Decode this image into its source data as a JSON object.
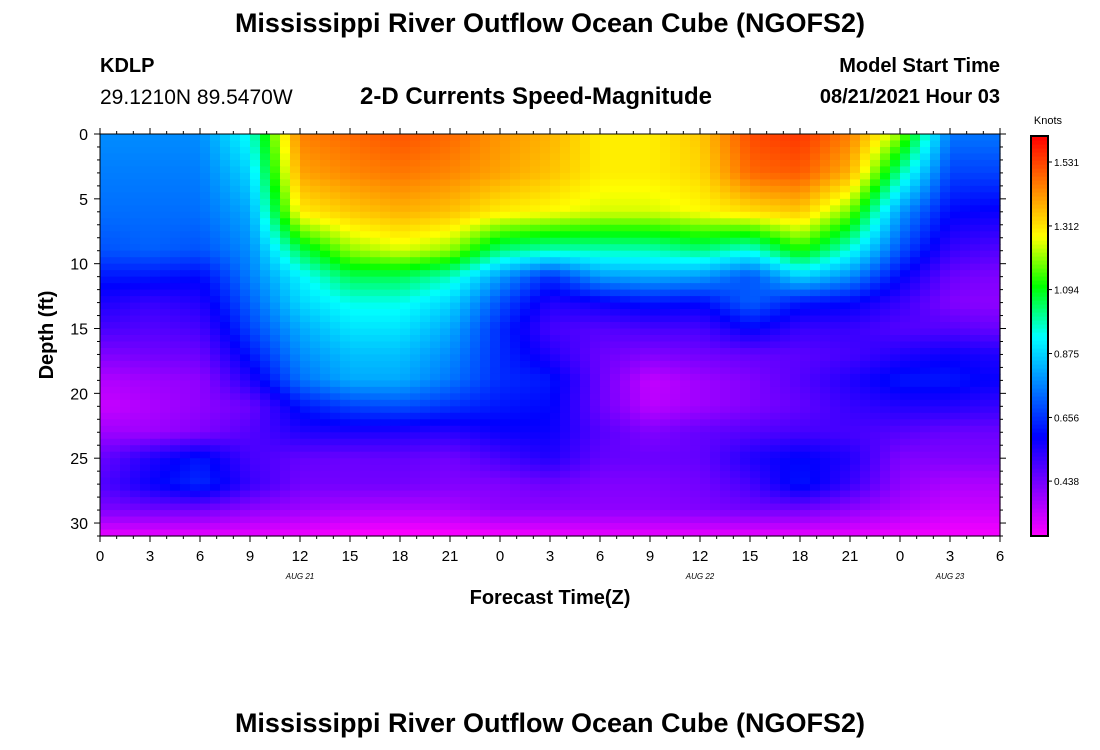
{
  "header": {
    "title": "Mississippi River Outflow Ocean Cube (NGOFS2)",
    "station_id": "KDLP",
    "station_coords": "29.1210N  89.5470W",
    "subtitle": "2-D Currents Speed-Magnitude",
    "model_start_label": "Model Start Time",
    "model_start_value": "08/21/2021 Hour 03"
  },
  "footer": {
    "title": "Mississippi River Outflow Ocean Cube (NGOFS2)"
  },
  "chart_data": {
    "type": "heatmap",
    "xlabel": "Forecast Time(Z)",
    "ylabel": "Depth (ft)",
    "colorbar_label": "Knots",
    "x_ticks": [
      "0",
      "3",
      "6",
      "9",
      "12",
      "15",
      "18",
      "21",
      "0",
      "3",
      "6",
      "9",
      "12",
      "15",
      "18",
      "21",
      "0",
      "3",
      "6"
    ],
    "date_labels": [
      {
        "label": "AUG  21",
        "hour": 12
      },
      {
        "label": "AUG  22",
        "hour": 36
      },
      {
        "label": "AUG  23",
        "hour": 51
      }
    ],
    "y_ticks": [
      0,
      5,
      10,
      15,
      20,
      25,
      30
    ],
    "xlim": [
      0,
      54
    ],
    "ylim": [
      0,
      31
    ],
    "y_inverted": true,
    "colorbar_ticks": [
      1.531,
      1.312,
      1.094,
      0.875,
      0.656,
      0.438
    ],
    "colorbar_range": [
      0.25,
      1.62
    ],
    "colors": {
      "magenta": "#ff00ff",
      "violet": "#8000ff",
      "blue": "#0000ff",
      "light-blue": "#0080ff",
      "cyan": "#00ffff",
      "green": "#00ff00",
      "yellow": "#ffff00",
      "orange": "#ff8000",
      "red": "#ff0000"
    },
    "depths": [
      0,
      3,
      6,
      9,
      11,
      13,
      15,
      17,
      19,
      21,
      23,
      25,
      27,
      29,
      31
    ],
    "hours": [
      0,
      3,
      6,
      9,
      12,
      15,
      18,
      21,
      24,
      27,
      30,
      33,
      36,
      39,
      42,
      45,
      48,
      51,
      54
    ],
    "values": [
      [
        0.78,
        0.78,
        0.78,
        0.95,
        1.45,
        1.48,
        1.51,
        1.48,
        1.42,
        1.38,
        1.3,
        1.3,
        1.35,
        1.52,
        1.55,
        1.45,
        1.2,
        0.75,
        0.75
      ],
      [
        0.76,
        0.76,
        0.76,
        0.88,
        1.4,
        1.44,
        1.46,
        1.44,
        1.4,
        1.36,
        1.3,
        1.3,
        1.33,
        1.48,
        1.5,
        1.38,
        1.0,
        0.68,
        0.68
      ],
      [
        0.74,
        0.74,
        0.74,
        0.82,
        1.3,
        1.35,
        1.38,
        1.36,
        1.3,
        1.28,
        1.25,
        1.25,
        1.28,
        1.32,
        1.35,
        1.18,
        0.8,
        0.6,
        0.58
      ],
      [
        0.7,
        0.72,
        0.7,
        0.78,
        1.05,
        1.2,
        1.25,
        1.2,
        1.02,
        0.98,
        0.98,
        0.98,
        1.02,
        0.95,
        1.12,
        0.95,
        0.7,
        0.52,
        0.48
      ],
      [
        0.62,
        0.62,
        0.6,
        0.76,
        0.92,
        1.05,
        1.05,
        0.98,
        0.8,
        0.65,
        0.8,
        0.82,
        0.8,
        0.7,
        0.88,
        0.78,
        0.6,
        0.45,
        0.42
      ],
      [
        0.56,
        0.52,
        0.55,
        0.72,
        0.88,
        0.95,
        0.95,
        0.88,
        0.7,
        0.55,
        0.58,
        0.62,
        0.6,
        0.72,
        0.62,
        0.6,
        0.52,
        0.42,
        0.4
      ],
      [
        0.5,
        0.48,
        0.5,
        0.68,
        0.82,
        0.9,
        0.9,
        0.82,
        0.65,
        0.5,
        0.48,
        0.5,
        0.5,
        0.6,
        0.52,
        0.52,
        0.48,
        0.48,
        0.45
      ],
      [
        0.42,
        0.44,
        0.45,
        0.62,
        0.78,
        0.85,
        0.85,
        0.78,
        0.65,
        0.55,
        0.45,
        0.42,
        0.44,
        0.46,
        0.47,
        0.5,
        0.55,
        0.58,
        0.55
      ],
      [
        0.35,
        0.38,
        0.4,
        0.55,
        0.74,
        0.82,
        0.82,
        0.75,
        0.65,
        0.62,
        0.45,
        0.33,
        0.38,
        0.42,
        0.48,
        0.55,
        0.62,
        0.62,
        0.58
      ],
      [
        0.32,
        0.36,
        0.4,
        0.45,
        0.62,
        0.68,
        0.7,
        0.66,
        0.62,
        0.6,
        0.45,
        0.34,
        0.38,
        0.42,
        0.46,
        0.52,
        0.55,
        0.55,
        0.52
      ],
      [
        0.38,
        0.38,
        0.42,
        0.48,
        0.55,
        0.56,
        0.55,
        0.54,
        0.58,
        0.58,
        0.48,
        0.42,
        0.46,
        0.48,
        0.5,
        0.5,
        0.48,
        0.45,
        0.45
      ],
      [
        0.45,
        0.55,
        0.62,
        0.5,
        0.46,
        0.45,
        0.46,
        0.44,
        0.5,
        0.55,
        0.46,
        0.45,
        0.46,
        0.55,
        0.6,
        0.55,
        0.42,
        0.42,
        0.42
      ],
      [
        0.48,
        0.58,
        0.65,
        0.52,
        0.44,
        0.44,
        0.44,
        0.42,
        0.42,
        0.45,
        0.42,
        0.42,
        0.44,
        0.5,
        0.62,
        0.52,
        0.4,
        0.36,
        0.36
      ],
      [
        0.42,
        0.44,
        0.44,
        0.4,
        0.38,
        0.36,
        0.35,
        0.36,
        0.4,
        0.4,
        0.4,
        0.4,
        0.42,
        0.44,
        0.44,
        0.4,
        0.36,
        0.32,
        0.32
      ],
      [
        0.28,
        0.28,
        0.28,
        0.28,
        0.27,
        0.25,
        0.24,
        0.25,
        0.26,
        0.27,
        0.28,
        0.28,
        0.28,
        0.28,
        0.28,
        0.28,
        0.27,
        0.26,
        0.26
      ]
    ]
  }
}
